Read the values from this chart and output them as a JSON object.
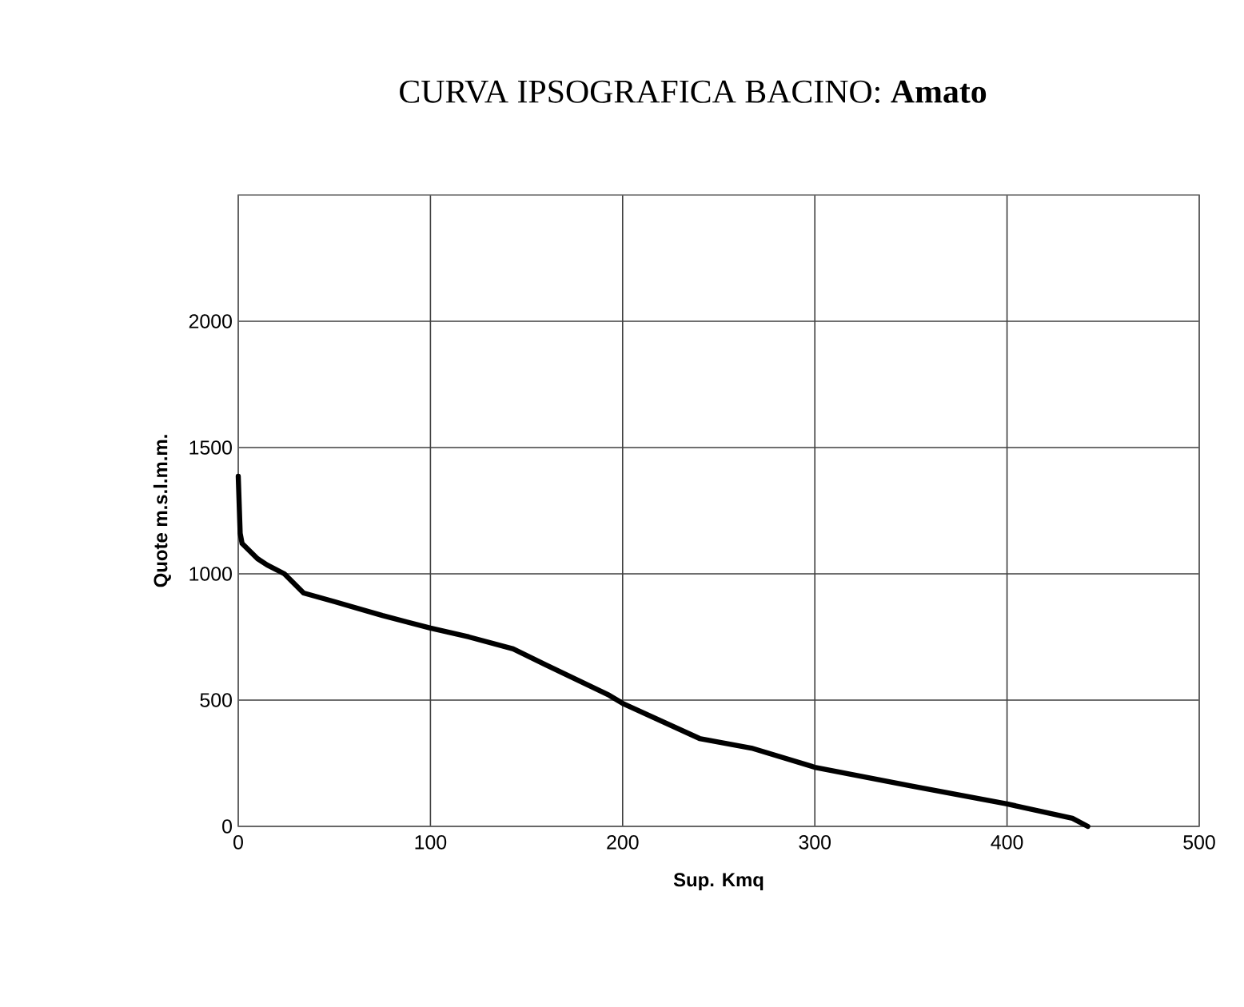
{
  "chart_data": {
    "type": "line",
    "title": "CURVA IPSOGRAFICA BACINO: **Amato**",
    "xlabel": "Sup. Kmq",
    "ylabel": "Quote m.s.l.m.m.",
    "x": [
      0,
      1,
      2,
      10,
      15,
      24,
      34,
      50,
      75,
      100,
      120,
      143,
      160,
      193,
      200,
      240,
      267,
      300,
      350,
      400,
      434,
      442
    ],
    "values": [
      1386,
      1160,
      1120,
      1060,
      1035,
      1000,
      924,
      890,
      835,
      785,
      750,
      703,
      640,
      519,
      487,
      348,
      310,
      234,
      160,
      89,
      32,
      0
    ],
    "color": "#000000",
    "xlim": [
      0,
      500
    ],
    "ylim": [
      0,
      2500
    ],
    "xticks": [
      0,
      100,
      200,
      300,
      400,
      500
    ],
    "yticks": [
      0,
      500,
      1000,
      1500,
      2000
    ],
    "grid": true
  }
}
